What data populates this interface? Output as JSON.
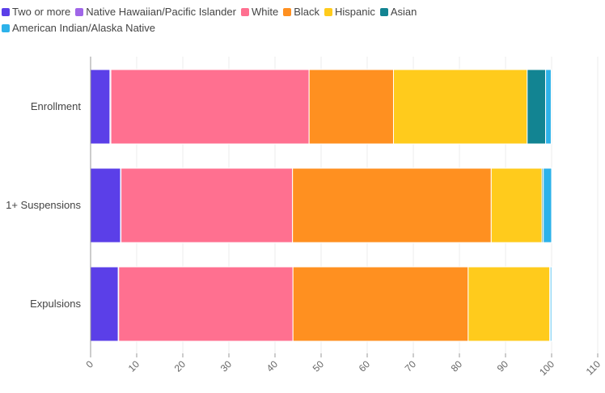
{
  "chart_data": {
    "type": "bar",
    "orientation": "horizontal",
    "stacked": true,
    "categories": [
      "Enrollment",
      "1+ Suspensions",
      "Expulsions"
    ],
    "series": [
      {
        "name": "Two or more",
        "color": "#5b3fe8",
        "values": [
          4.2,
          6.5,
          6.0
        ]
      },
      {
        "name": "Native Hawaiian/Pacific Islander",
        "color": "#a066e8",
        "values": [
          0.2,
          0.1,
          0.1
        ]
      },
      {
        "name": "White",
        "color": "#ff7090",
        "values": [
          43.0,
          37.2,
          37.8
        ]
      },
      {
        "name": "Black",
        "color": "#ff9020",
        "values": [
          18.3,
          43.1,
          38.0
        ]
      },
      {
        "name": "Hispanic",
        "color": "#ffcb1c",
        "values": [
          29.0,
          11.0,
          17.7
        ]
      },
      {
        "name": "Asian",
        "color": "#128492",
        "values": [
          4.0,
          0.3,
          0.1
        ]
      },
      {
        "name": "American Indian/Alaska Native",
        "color": "#2db2ea",
        "values": [
          1.2,
          1.8,
          0.3
        ]
      }
    ],
    "xlim": [
      0,
      110
    ],
    "xticks": [
      0,
      10,
      20,
      30,
      40,
      50,
      60,
      70,
      80,
      90,
      100,
      110
    ],
    "grid": "vertical",
    "legend": "top-left"
  }
}
